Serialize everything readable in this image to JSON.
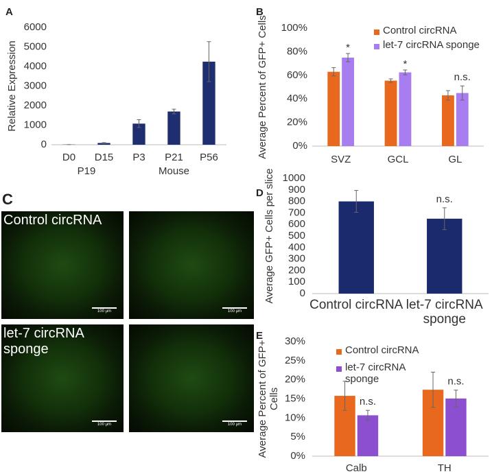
{
  "chart_data": [
    {
      "type": "bar",
      "panel_label": "A",
      "ylabel": "Relative Expression",
      "categories": [
        "D0",
        "D15",
        "P3",
        "P21",
        "P56"
      ],
      "groups": [
        {
          "label": "P19",
          "categories": [
            "D0",
            "D15"
          ]
        },
        {
          "label": "Mouse",
          "categories": [
            "P3",
            "P21",
            "P56"
          ]
        }
      ],
      "series": [
        {
          "color": "#1f2e6e",
          "values": [
            10,
            90,
            1080,
            1700,
            4250
          ],
          "errors": [
            0,
            20,
            200,
            120,
            1020
          ]
        }
      ],
      "ylim": [
        0,
        6000
      ],
      "yticks": [
        0,
        1000,
        2000,
        3000,
        4000,
        5000,
        6000
      ],
      "grid": false
    },
    {
      "type": "bar",
      "panel_label": "B",
      "ylabel": "Average Percent of GFP+ Cells",
      "categories": [
        "SVZ",
        "GCL",
        "GL"
      ],
      "series": [
        {
          "name": "Control circRNA",
          "color": "#e8681e",
          "values": [
            63,
            55.5,
            43
          ],
          "errors": [
            3.5,
            1.5,
            4
          ]
        },
        {
          "name": "let-7 circRNA sponge",
          "color": "#a77df0",
          "values": [
            75,
            62.5,
            45
          ],
          "errors": [
            3.5,
            2,
            6
          ],
          "annotations": [
            "*",
            "*",
            "n.s."
          ]
        }
      ],
      "ylim": [
        0,
        100
      ],
      "yticks": [
        {
          "value": 0,
          "label": "0%"
        },
        {
          "value": 20,
          "label": "20%"
        },
        {
          "value": 40,
          "label": "40%"
        },
        {
          "value": 60,
          "label": "60%"
        },
        {
          "value": 80,
          "label": "80%"
        },
        {
          "value": 100,
          "label": "100%"
        }
      ],
      "grid": false
    },
    {
      "type": "bar",
      "panel_label": "D",
      "ylabel": "Average GFP+ Cells per slice",
      "categories": [
        "Control circRNA",
        "let-7 circRNA sponge"
      ],
      "series": [
        {
          "color": "#1a2a6c",
          "values": [
            800,
            650
          ],
          "errors": [
            95,
            95
          ],
          "annotations": [
            null,
            "n.s."
          ]
        }
      ],
      "ylim": [
        0,
        1000
      ],
      "yticks": [
        0,
        100,
        200,
        300,
        400,
        500,
        600,
        700,
        800,
        900,
        1000
      ],
      "grid": false
    },
    {
      "type": "bar",
      "panel_label": "E",
      "ylabel": "Average Percent of GFP+ Cells",
      "categories": [
        "Calb",
        "TH"
      ],
      "series": [
        {
          "name": "Control circRNA",
          "color": "#e8681e",
          "values": [
            15.8,
            17.4
          ],
          "errors": [
            3.8,
            4.6
          ],
          "annotations": [
            null,
            null
          ]
        },
        {
          "name": "let-7 circRNA sponge",
          "color": "#8b4fcf",
          "values": [
            10.7,
            15.1
          ],
          "errors": [
            1.3,
            2.2
          ],
          "annotations": [
            "n.s.",
            "n.s."
          ]
        }
      ],
      "ylim": [
        0,
        30
      ],
      "yticks": [
        {
          "value": 0,
          "label": "0%"
        },
        {
          "value": 5,
          "label": "5%"
        },
        {
          "value": 10,
          "label": "10%"
        },
        {
          "value": 15,
          "label": "15%"
        },
        {
          "value": 20,
          "label": "20%"
        },
        {
          "value": 25,
          "label": "25%"
        },
        {
          "value": 30,
          "label": "30%"
        }
      ],
      "grid": false
    }
  ],
  "image_panel": {
    "panel_label": "C",
    "labels": [
      "Control circRNA",
      "let-7 circRNA sponge"
    ],
    "scale_bars": [
      "100 µm",
      "100 µm",
      "100 µm",
      "100 µm"
    ]
  }
}
